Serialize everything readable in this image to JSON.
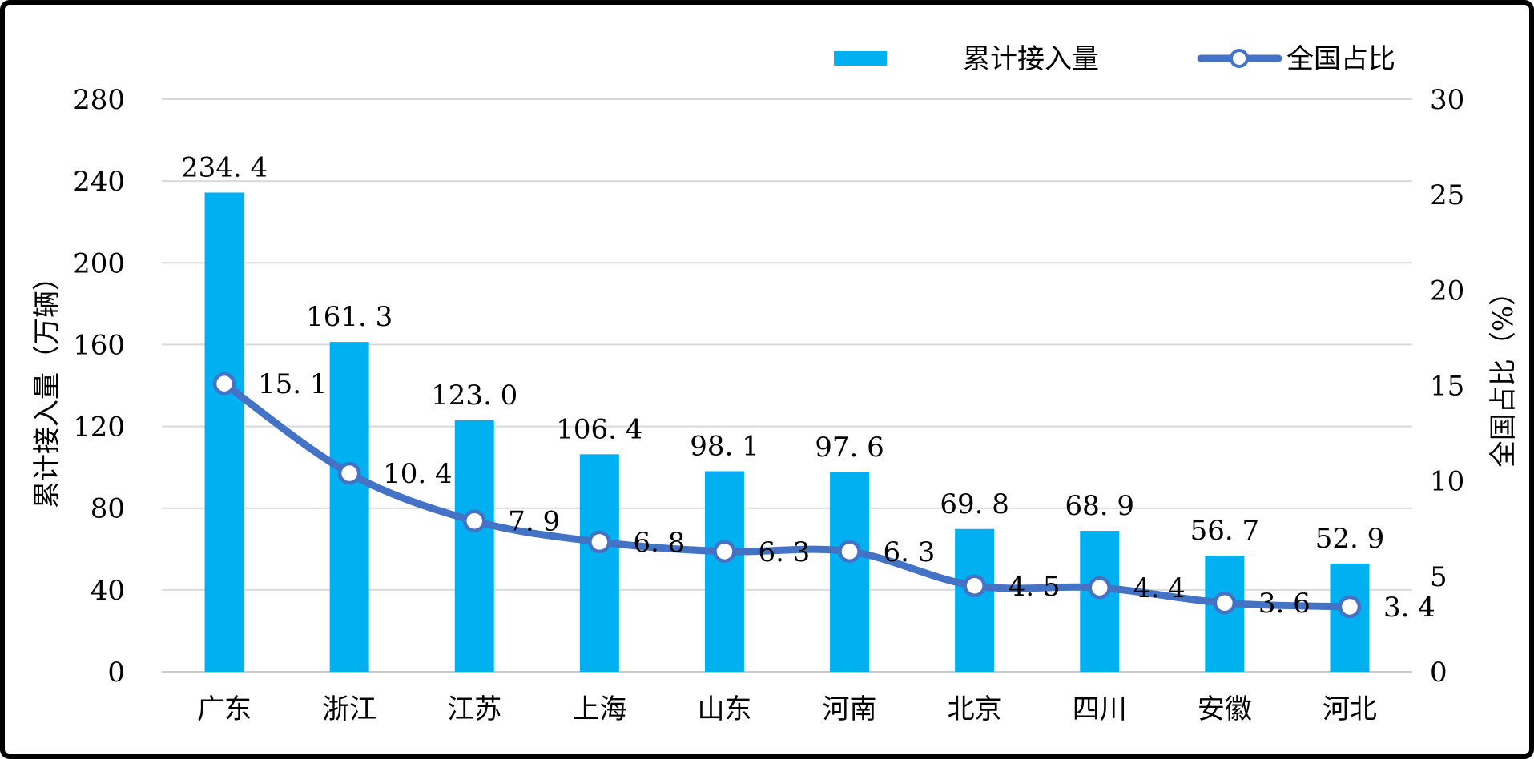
{
  "chart_data": {
    "type": "combo-bar-line",
    "categories": [
      "广东",
      "浙江",
      "江苏",
      "上海",
      "山东",
      "河南",
      "北京",
      "四川",
      "安徽",
      "河北"
    ],
    "series": [
      {
        "name": "累计接入量",
        "type": "bar",
        "axis": "left",
        "color": "#00B0F0",
        "values": [
          234.4,
          161.3,
          123.0,
          106.4,
          98.1,
          97.6,
          69.8,
          68.9,
          56.7,
          52.9
        ]
      },
      {
        "name": "全国占比",
        "type": "line",
        "axis": "right",
        "color": "#4472C4",
        "marker": "white-circle",
        "smooth": true,
        "values": [
          15.1,
          10.4,
          7.9,
          6.8,
          6.3,
          6.3,
          4.5,
          4.4,
          3.6,
          3.4
        ]
      }
    ],
    "left_axis": {
      "title": "累计接入量（万辆）",
      "min": 0,
      "max": 280,
      "step": 40,
      "tick_labels": [
        "280",
        "240",
        "200",
        "160",
        "120",
        "80",
        "40",
        "0"
      ]
    },
    "right_axis": {
      "title": "全国占比（%）",
      "min": 0,
      "max": 30,
      "step": 5,
      "tick_labels": [
        "30",
        "25",
        "20",
        "15",
        "10",
        "5",
        "0"
      ]
    },
    "grid": true,
    "legend_position": "top"
  },
  "legend": {
    "bar_label": "累计接入量",
    "line_label": "全国占比"
  },
  "data_labels": {
    "bar": [
      "234. 4",
      "161. 3",
      "123. 0",
      "106. 4",
      "98. 1",
      "97. 6",
      "69. 8",
      "68. 9",
      "56. 7",
      "52. 9"
    ],
    "line": [
      "15. 1",
      "10. 4",
      "7. 9",
      "6. 8",
      "6. 3",
      "6. 3",
      "4. 5",
      "4. 4",
      "3. 6",
      "3. 4"
    ]
  },
  "colors": {
    "bar": "#00B0F0",
    "line": "#4472C4",
    "marker_fill": "#FFFFFF",
    "grid": "#D9D9D9",
    "axis_line": "#C9C9C9",
    "text": "#000000",
    "frame": "#000000",
    "background": "#FFFFFF"
  }
}
